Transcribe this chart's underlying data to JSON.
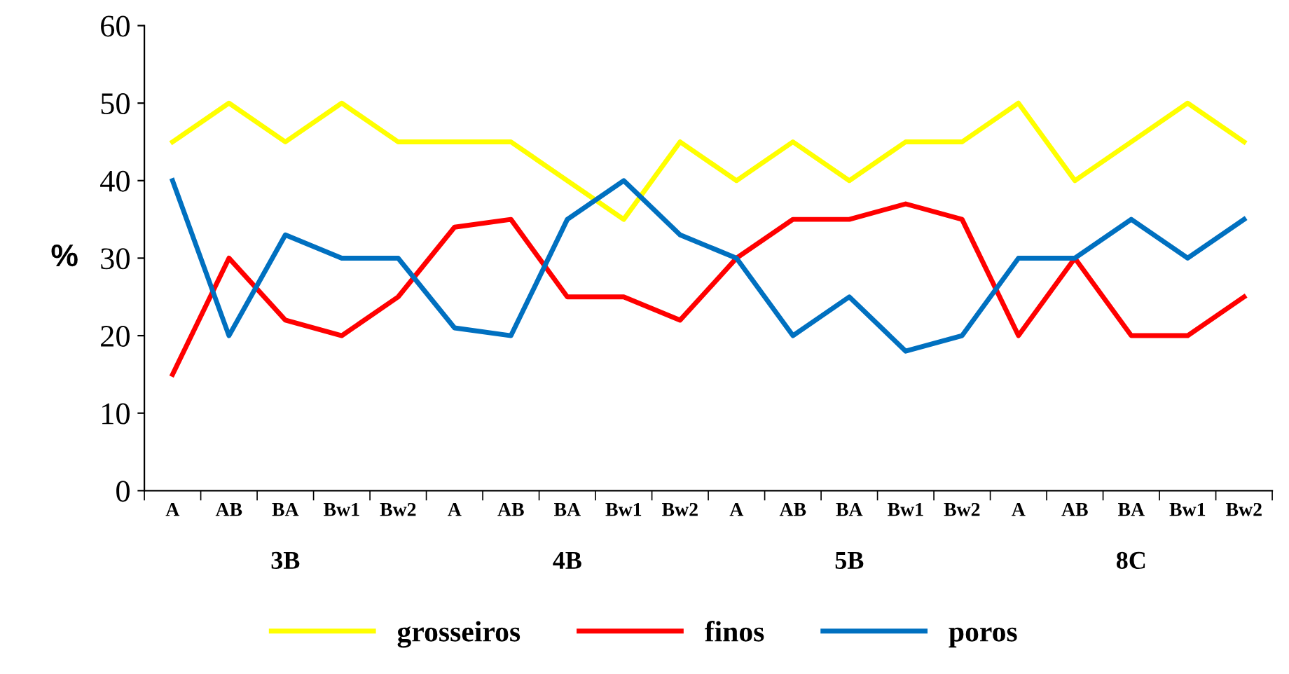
{
  "chart_data": {
    "type": "line",
    "ylabel": "%",
    "categories": [
      "A",
      "AB",
      "BA",
      "Bw1",
      "Bw2",
      "A",
      "AB",
      "BA",
      "Bw1",
      "Bw2",
      "A",
      "AB",
      "BA",
      "Bw1",
      "Bw2",
      "A",
      "AB",
      "BA",
      "Bw1",
      "Bw2"
    ],
    "annotations": [
      "3B",
      "4B",
      "5B",
      "8C"
    ],
    "series": [
      {
        "name": "grosseiros",
        "color": "#ffff00",
        "values": [
          45,
          50,
          45,
          50,
          45,
          45,
          45,
          40,
          35,
          45,
          40,
          45,
          40,
          45,
          45,
          50,
          40,
          45,
          50,
          45
        ]
      },
      {
        "name": "finos",
        "color": "#ff0000",
        "values": [
          15,
          30,
          22,
          20,
          25,
          34,
          35,
          25,
          25,
          22,
          30,
          35,
          35,
          37,
          35,
          20,
          30,
          20,
          20,
          25
        ]
      },
      {
        "name": "poros",
        "color": "#0070c0",
        "values": [
          40,
          20,
          33,
          30,
          30,
          21,
          20,
          35,
          40,
          33,
          30,
          20,
          25,
          18,
          20,
          30,
          30,
          35,
          30,
          35
        ]
      }
    ],
    "ylim": [
      0,
      60
    ],
    "yticks": [
      0,
      10,
      20,
      30,
      40,
      50,
      60
    ],
    "grid": false,
    "legend": "bottom",
    "marker": "none",
    "line_style": "solid"
  }
}
